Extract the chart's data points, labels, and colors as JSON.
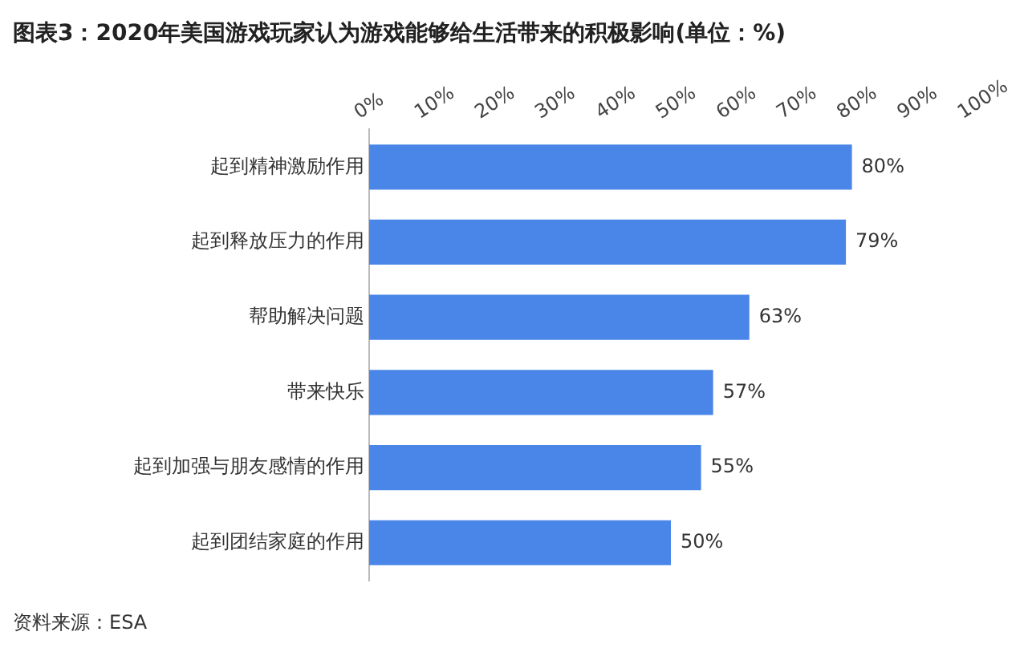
{
  "chart_data": {
    "type": "bar",
    "orientation": "horizontal",
    "title": "图表3：2020年美国游戏玩家认为游戏能够给生活带来的积极影响(单位：%)",
    "categories": [
      "起到精神激励作用",
      "起到释放压力的作用",
      "帮助解决问题",
      "带来快乐",
      "起到加强与朋友感情的作用",
      "起到团结家庭的作用"
    ],
    "values": [
      80,
      79,
      63,
      57,
      55,
      50
    ],
    "value_labels": [
      "80%",
      "79%",
      "63%",
      "57%",
      "55%",
      "50%"
    ],
    "color": "#4a86e8",
    "xlim": [
      0,
      100
    ],
    "xticks": [
      {
        "value": 0,
        "label": "0%"
      },
      {
        "value": 10,
        "label": "10%"
      },
      {
        "value": 20,
        "label": "20%"
      },
      {
        "value": 30,
        "label": "30%"
      },
      {
        "value": 40,
        "label": "40%"
      },
      {
        "value": 50,
        "label": "50%"
      },
      {
        "value": 60,
        "label": "60%"
      },
      {
        "value": 70,
        "label": "70%"
      },
      {
        "value": 80,
        "label": "80%"
      },
      {
        "value": 90,
        "label": "90%"
      },
      {
        "value": 100,
        "label": "100%"
      }
    ],
    "grid": false,
    "legend": false,
    "annotations": [
      "资料来源：ESA"
    ]
  }
}
